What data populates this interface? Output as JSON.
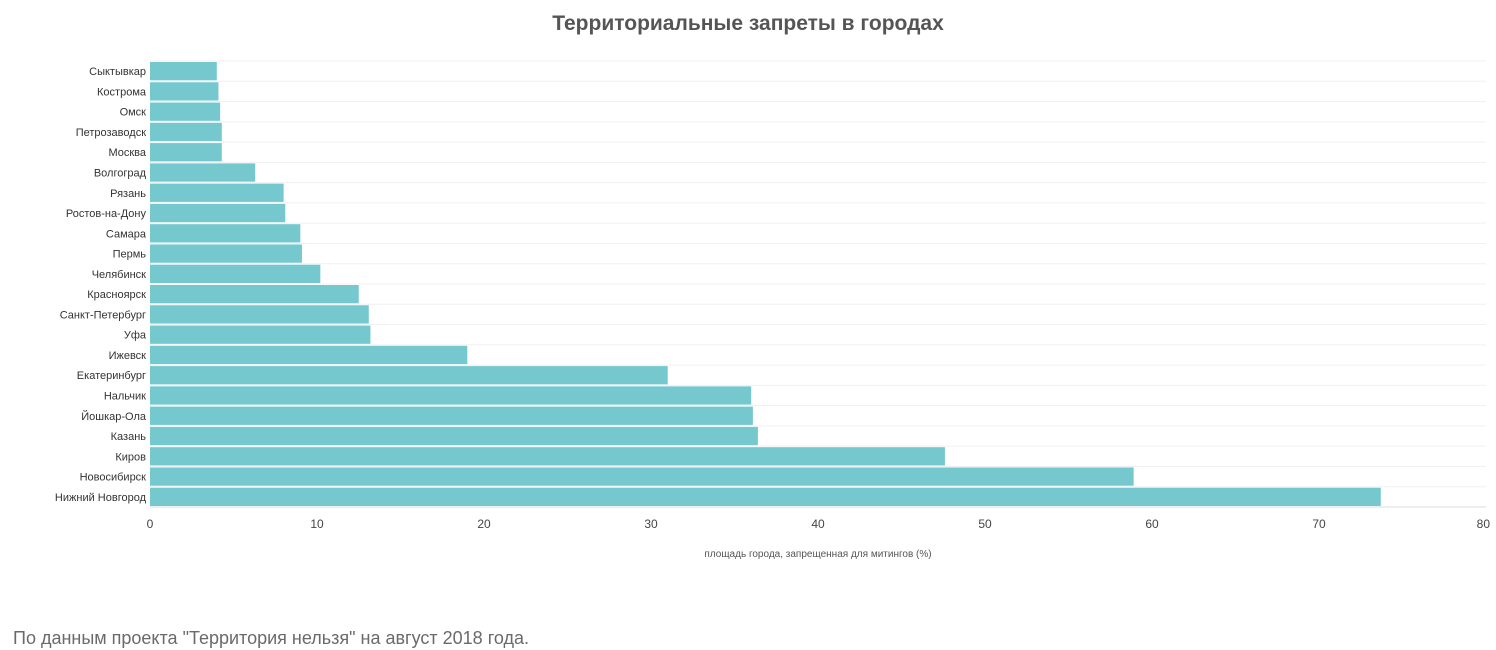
{
  "chart_data": {
    "type": "bar",
    "orientation": "horizontal",
    "title": "Территориальные запреты в городах",
    "xlabel": "площадь города, запрещенная для митингов (%)",
    "ylabel": "",
    "xlim": [
      0,
      80
    ],
    "xticks": [
      "0",
      "10",
      "20",
      "30",
      "40",
      "50",
      "60",
      "70",
      "80"
    ],
    "grid": true,
    "bar_color": "#76c8cf",
    "categories": [
      "Сыктывкар",
      "Кострома",
      "Омск",
      "Петрозаводск",
      "Москва",
      "Волгоград",
      "Рязань",
      "Ростов-на-Дону",
      "Самара",
      "Пермь",
      "Челябинск",
      "Красноярск",
      "Санкт-Петербург",
      "Уфа",
      "Ижевск",
      "Екатеринбург",
      "Нальчик",
      "Йошкар-Ола",
      "Казань",
      "Киров",
      "Новосибирск",
      "Нижний Новгород"
    ],
    "values": [
      4.0,
      4.1,
      4.2,
      4.3,
      4.3,
      6.3,
      8.0,
      8.1,
      9.0,
      9.1,
      10.2,
      12.5,
      13.1,
      13.2,
      19.0,
      31.0,
      36.0,
      36.1,
      36.4,
      47.6,
      58.9,
      73.7
    ]
  },
  "footer": {
    "source": "По данным проекта \"Территория нельзя\" на август 2018 года."
  }
}
